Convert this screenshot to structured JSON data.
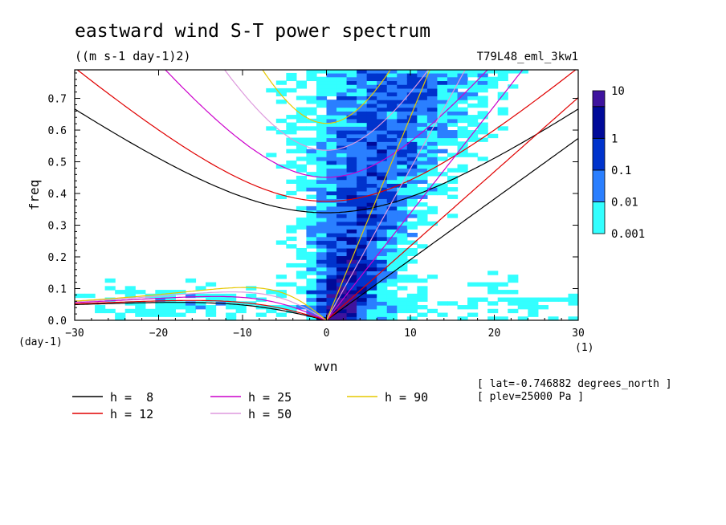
{
  "chart_data": {
    "type": "heatmap",
    "title": "eastward wind S-T power spectrum",
    "units": "((m s-1 day-1)2)",
    "run_label": "T79L48_eml_3kw1",
    "xlabel": "wvn",
    "ylabel": "freq",
    "x_unit_label": "(1)",
    "y_unit_label": "(day-1)",
    "xlim": [
      -30,
      30
    ],
    "ylim": [
      0,
      0.79
    ],
    "xticks": [
      -30,
      -20,
      -10,
      0,
      10,
      20,
      30
    ],
    "yticks": [
      0.0,
      0.1,
      0.2,
      0.3,
      0.4,
      0.5,
      0.6,
      0.7
    ],
    "ytick_labels": [
      "0.0",
      "0.1",
      "0.2",
      "0.3",
      "0.4",
      "0.5",
      "0.6",
      "0.7"
    ],
    "colorbar": {
      "levels": [
        "0.001",
        "0.01",
        "0.1",
        "1",
        "10"
      ],
      "colors": [
        "#33ffff",
        "#2a7fff",
        "#0033cc",
        "#000a99",
        "#3e139e"
      ]
    },
    "series": [
      {
        "name": "h =  8",
        "h": 8,
        "color": "#000000"
      },
      {
        "name": "h = 12",
        "h": 12,
        "color": "#e00000"
      },
      {
        "name": "h = 25",
        "h": 25,
        "color": "#cc00cc"
      },
      {
        "name": "h = 50",
        "h": 50,
        "color": "#dd99dd"
      },
      {
        "name": "h = 90",
        "h": 90,
        "color": "#e6c800"
      }
    ],
    "annotations": [
      "[ lat=-0.746882 degrees_north ]",
      "[ plev=25000 Pa ]"
    ]
  }
}
